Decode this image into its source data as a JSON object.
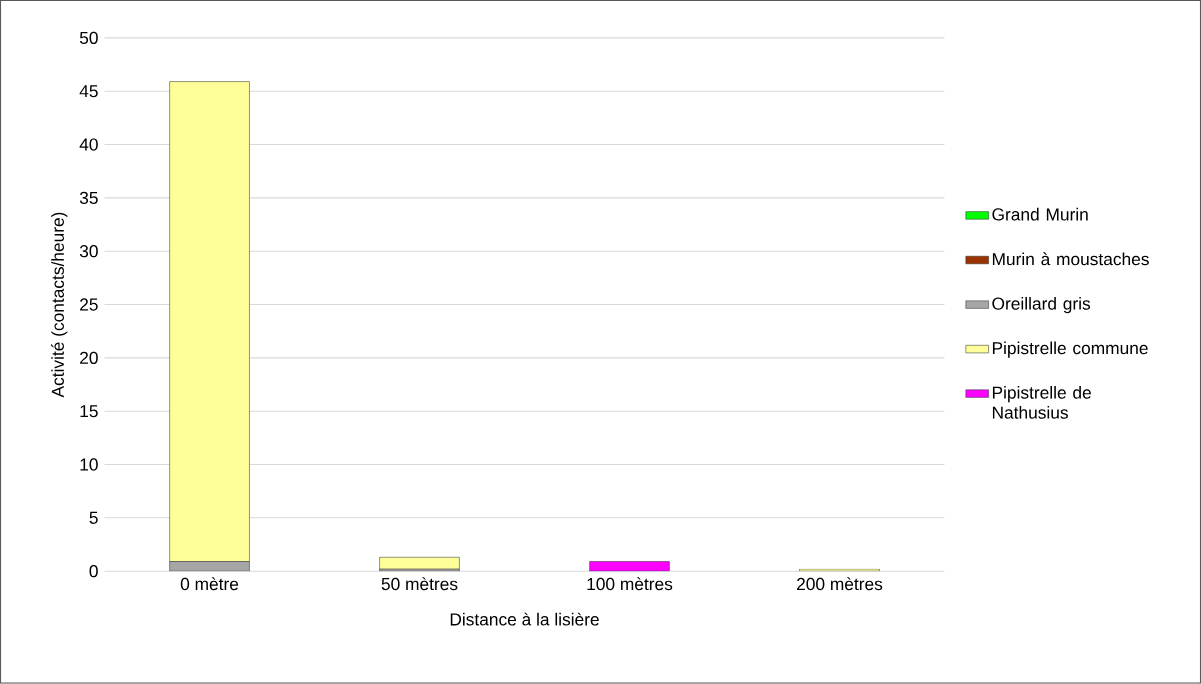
{
  "chart_data": {
    "type": "bar",
    "stacked": true,
    "xlabel": "Distance à la lisière",
    "ylabel": "Activité (contacts/heure)",
    "categories": [
      "0 mètre",
      "50 mètres",
      "100 mètres",
      "200 mètres"
    ],
    "ylim": [
      0,
      50
    ],
    "yticks": [
      0,
      5,
      10,
      15,
      20,
      25,
      30,
      35,
      40,
      45,
      50
    ],
    "grid": "y",
    "legend": "right",
    "series": [
      {
        "name": "Grand Murin",
        "color": "#00ff00",
        "values": [
          null,
          null,
          null,
          null
        ]
      },
      {
        "name": "Murin à moustaches",
        "color": "#993300",
        "values": [
          null,
          null,
          null,
          null
        ]
      },
      {
        "name": "Oreillard gris",
        "color": "#a6a6a6",
        "values": [
          0.9,
          0.2,
          null,
          null
        ]
      },
      {
        "name": "Pipistrelle commune",
        "color": "#ffff99",
        "values": [
          45.0,
          1.1,
          null,
          0.2
        ]
      },
      {
        "name": "Pipistrelle de Nathusius",
        "color": "#ff00ff",
        "values": [
          null,
          null,
          0.9,
          null
        ]
      }
    ]
  }
}
